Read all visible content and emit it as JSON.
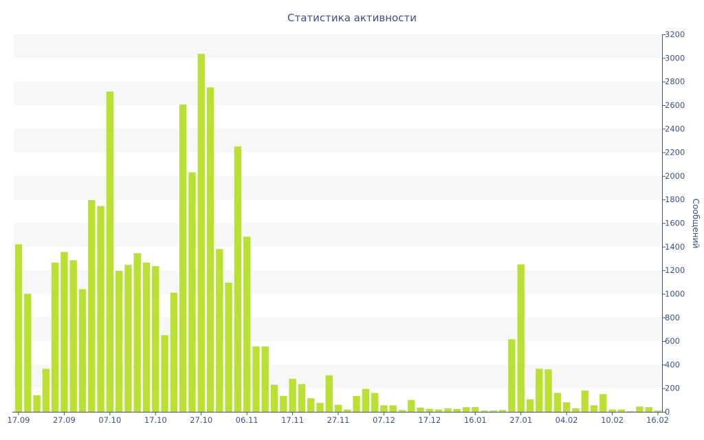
{
  "chart_data": {
    "type": "bar",
    "title": "Статистика активности",
    "ylabel": "Сообщений",
    "xlabel": "",
    "ylim": [
      0,
      3200
    ],
    "y_ticks": [
      0,
      200,
      400,
      600,
      800,
      1000,
      1200,
      1400,
      1600,
      1800,
      2000,
      2200,
      2400,
      2600,
      2800,
      3000,
      3200
    ],
    "y_axis_side": "right",
    "grid": "alternating horizontal bands",
    "x_tick_labels": [
      "17.09",
      "27.09",
      "07.10",
      "17.10",
      "27.10",
      "06.11",
      "17.11",
      "27.11",
      "07.12",
      "17.12",
      "16.01",
      "27.01",
      "04.02",
      "10.02",
      "16.02"
    ],
    "x_tick_positions": [
      0,
      5,
      10,
      15,
      20,
      25,
      30,
      35,
      40,
      45,
      50,
      55,
      60,
      65,
      70
    ],
    "bar_color": "#b9e032",
    "series": [
      {
        "values": [
          1420,
          1000,
          140,
          365,
          1265,
          1355,
          1285,
          1040,
          1795,
          1745,
          2715,
          1195,
          1245,
          1345,
          1265,
          1235,
          650,
          1010,
          2605,
          2030,
          3035,
          2750,
          1380,
          1095,
          2250,
          1485,
          555,
          555,
          230,
          135,
          280,
          235,
          115,
          75,
          310,
          60,
          20,
          135,
          195,
          160,
          55,
          55,
          15,
          100,
          35,
          25,
          20,
          30,
          25,
          40,
          40,
          10,
          10,
          15,
          615,
          1250,
          105,
          365,
          360,
          160,
          80,
          30,
          180,
          55,
          150,
          20,
          20,
          5,
          45,
          40,
          10
        ]
      }
    ]
  }
}
